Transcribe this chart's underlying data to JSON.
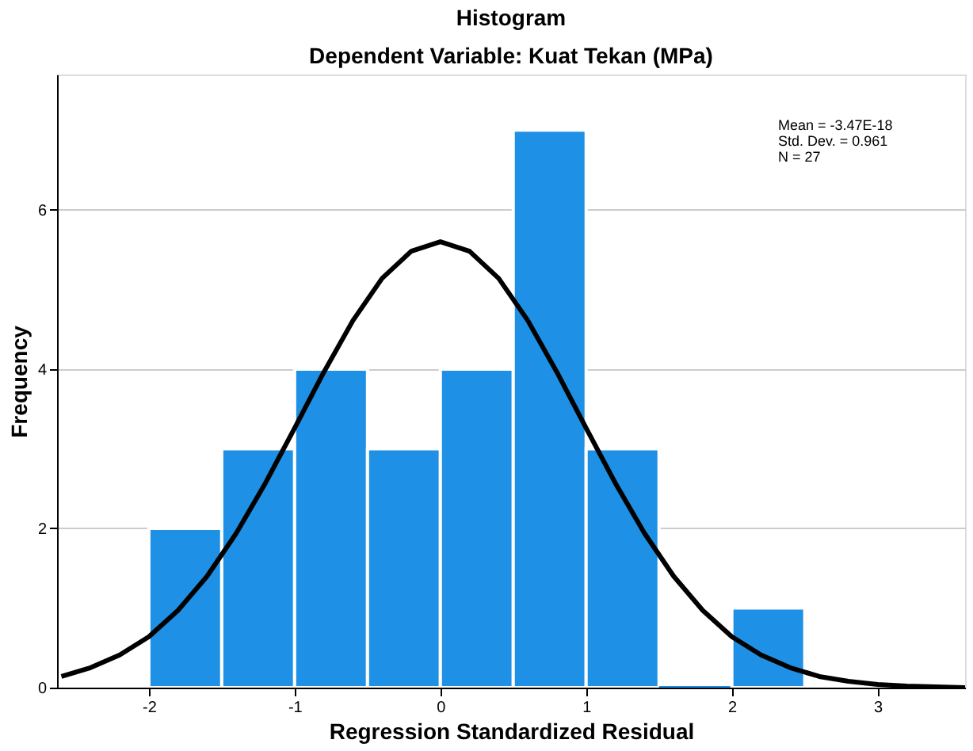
{
  "chart_data": {
    "type": "histogram",
    "title": "Histogram",
    "subtitle": "Dependent Variable: Kuat Tekan (MPa)",
    "xlabel": "Regression Standardized Residual",
    "ylabel": "Frequency",
    "bins": [
      -2,
      -1.5,
      -1,
      -0.5,
      0,
      0.5,
      1,
      1.5,
      2,
      2.5
    ],
    "values": [
      2,
      3,
      4,
      3,
      4,
      7,
      3,
      0,
      1
    ],
    "color": "#1e90e6",
    "series": [
      {
        "type": "line",
        "color": "#000000",
        "x": [
          -2.6,
          -2.4,
          -2.2,
          -2.0,
          -1.8,
          -1.6,
          -1.4,
          -1.2,
          -1.0,
          -0.8,
          -0.6,
          -0.4,
          -0.2,
          0,
          0.2,
          0.4,
          0.6,
          0.8,
          1.0,
          1.2,
          1.4,
          1.6,
          1.8,
          2.0,
          2.2,
          2.4,
          2.6,
          2.8,
          3.0,
          3.2,
          3.4,
          3.6
        ],
        "values": [
          0.14,
          0.25,
          0.41,
          0.64,
          0.97,
          1.4,
          1.94,
          2.57,
          3.26,
          3.96,
          4.61,
          5.14,
          5.48,
          5.6,
          5.48,
          5.14,
          4.61,
          3.96,
          3.26,
          2.57,
          1.94,
          1.4,
          0.97,
          0.64,
          0.41,
          0.25,
          0.14,
          0.08,
          0.04,
          0.02,
          0.01,
          0.0
        ]
      }
    ],
    "xlim": [
      -2.63,
      3.6
    ],
    "xticks": [
      -2,
      -1,
      0,
      1,
      2,
      3
    ],
    "ylim": [
      0,
      7.7
    ],
    "yticks": [
      0,
      2,
      4,
      6
    ],
    "grid": "y",
    "annotations": [
      "Mean = -3.47E-18",
      "Std. Dev. = 0.961",
      "N = 27"
    ]
  }
}
